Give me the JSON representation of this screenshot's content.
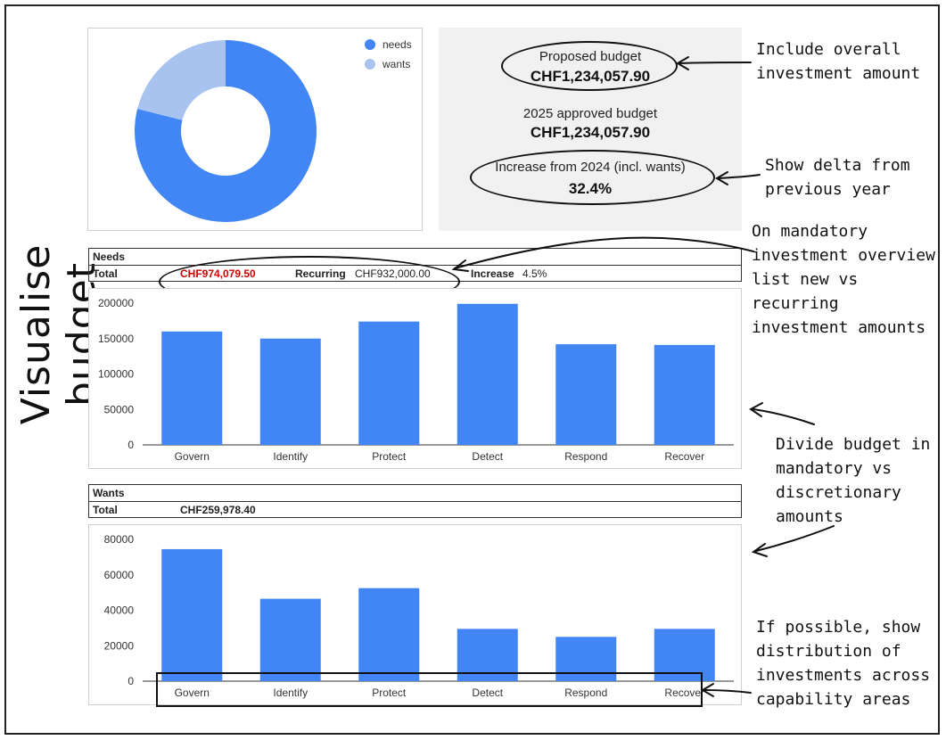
{
  "page_title": "Visualise budget",
  "pie": {
    "legend": [
      {
        "label": "needs",
        "color": "#4285F4"
      },
      {
        "label": "wants",
        "color": "#A8C3F0"
      }
    ]
  },
  "summary": {
    "proposed_label": "Proposed budget",
    "proposed_value": "CHF1,234,057.90",
    "approved_label": "2025 approved budget",
    "approved_value": "CHF1,234,057.90",
    "increase_label": "Increase from 2024 (incl. wants)",
    "increase_value": "32.4%"
  },
  "needs_table": {
    "header": "Needs",
    "total_label": "Total",
    "total_value": "CHF974,079.50",
    "recurring_label": "Recurring",
    "recurring_value": "CHF932,000.00",
    "increase_label": "Increase",
    "increase_value": "4.5%"
  },
  "wants_table": {
    "header": "Wants",
    "total_label": "Total",
    "total_value": "CHF259,978.40"
  },
  "annotations": {
    "overall": "Include overall\ninvestment amount",
    "delta": "Show delta from\nprevious year",
    "mandatory": "On mandatory\ninvestment overview\nlist new vs recurring\ninvestment amounts",
    "divide": "Divide budget in\nmandatory vs\ndiscretionary\namounts",
    "distribution": "If possible, show\ndistribution of\ninvestments across\ncapability areas"
  },
  "colors": {
    "bar": "#4285F4",
    "wants": "#A8C3F0",
    "needs_total": "#cc0000"
  },
  "chart_data": [
    {
      "type": "pie",
      "donut": true,
      "categories": [
        "needs",
        "wants"
      ],
      "values": [
        974079.5,
        259978.4
      ],
      "legend": "top-right"
    },
    {
      "type": "bar",
      "categories": [
        "Govern",
        "Identify",
        "Protect",
        "Detect",
        "Respond",
        "Recover"
      ],
      "values": [
        160000,
        150000,
        174000,
        199000,
        142000,
        141000
      ],
      "ylim": [
        0,
        200000
      ],
      "yticks": [
        0,
        50000,
        100000,
        150000,
        200000
      ],
      "grid": false
    },
    {
      "type": "bar",
      "categories": [
        "Govern",
        "Identify",
        "Protect",
        "Detect",
        "Respond",
        "Recover"
      ],
      "values": [
        74500,
        46500,
        52500,
        29500,
        25000,
        29500
      ],
      "ylim": [
        0,
        80000
      ],
      "yticks": [
        0,
        20000,
        40000,
        60000,
        80000
      ],
      "grid": false
    }
  ]
}
